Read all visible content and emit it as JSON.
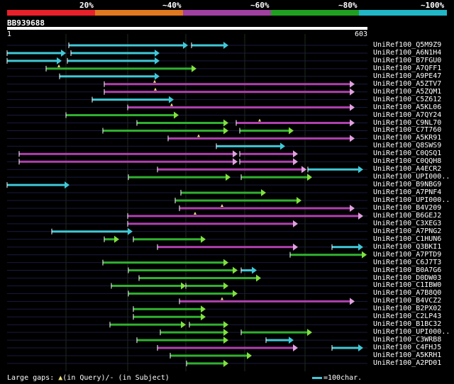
{
  "legend": {
    "colors": [
      "#e8202a",
      "#e07820",
      "#a040a0",
      "#20a020",
      "#20b8c8"
    ],
    "labels": [
      "20%",
      "~40%",
      "~60%",
      "~80%",
      "~100%"
    ]
  },
  "query": {
    "name": "BB939688",
    "start": "1",
    "end": "603"
  },
  "colors": {
    "cyan": "#40c8d8",
    "green": "#30b030",
    "magenta": "#b040b0",
    "arrowGreen": "#80e040",
    "arrowMagenta": "#e0a0e0",
    "guide": "#1a1a40"
  },
  "hits": [
    {
      "label": "UniRef100_Q5M9Z9",
      "segs": [
        [
          97,
          265,
          "c"
        ],
        [
          270,
          322,
          "c"
        ]
      ]
    },
    {
      "label": "UniRef100_A6N1H4",
      "segs": [
        [
          10,
          93,
          "c"
        ],
        [
          100,
          225,
          "c"
        ]
      ]
    },
    {
      "label": "UniRef100_B7FGU0",
      "segs": [
        [
          10,
          87,
          "c"
        ],
        [
          95,
          225,
          "c"
        ]
      ]
    },
    {
      "label": "UniRef100_A7QFF1",
      "segs": [
        [
          65,
          277,
          "g"
        ]
      ],
      "gaps": [
        83
      ]
    },
    {
      "label": "UniRef100_A9PE47",
      "segs": [
        [
          84,
          225,
          "c"
        ]
      ]
    },
    {
      "label": "UniRef100_A5ZTV7",
      "segs": [
        [
          147,
          500,
          "m"
        ]
      ],
      "gaps": [
        218
      ]
    },
    {
      "label": "UniRef100_A5ZQM1",
      "segs": [
        [
          147,
          500,
          "m"
        ]
      ],
      "gaps": [
        219
      ]
    },
    {
      "label": "UniRef100_C5Z612",
      "segs": [
        [
          130,
          245,
          "c"
        ]
      ]
    },
    {
      "label": "UniRef100_A5KL06",
      "segs": [
        [
          180,
          500,
          "m"
        ]
      ],
      "gaps": [
        242
      ]
    },
    {
      "label": "UniRef100_A7QY24",
      "segs": [
        [
          93,
          252,
          "g"
        ]
      ]
    },
    {
      "label": "UniRef100_C9NL70",
      "segs": [
        [
          193,
          322,
          "g"
        ],
        [
          333,
          500,
          "m"
        ]
      ],
      "gaps": [
        366
      ]
    },
    {
      "label": "UniRef100_C7T760",
      "segs": [
        [
          145,
          322,
          "g"
        ],
        [
          338,
          414,
          "g"
        ]
      ]
    },
    {
      "label": "UniRef100_A5KR91",
      "segs": [
        [
          237,
          500,
          "m"
        ]
      ],
      "gaps": [
        280
      ]
    },
    {
      "label": "UniRef100_Q8SWS9",
      "segs": [
        [
          305,
          402,
          "c"
        ]
      ]
    },
    {
      "label": "UniRef100_C0QSQ1",
      "segs": [
        [
          27,
          335,
          "m"
        ],
        [
          338,
          420,
          "m"
        ]
      ]
    },
    {
      "label": "UniRef100_C0QQH8",
      "segs": [
        [
          27,
          335,
          "m"
        ],
        [
          338,
          420,
          "m"
        ]
      ]
    },
    {
      "label": "UniRef100_A4ECR2",
      "segs": [
        [
          222,
          432,
          "m"
        ],
        [
          434,
          512,
          "c"
        ]
      ]
    },
    {
      "label": "UniRef100_UPI000..",
      "segs": [
        [
          181,
          325,
          "g"
        ],
        [
          340,
          440,
          "g"
        ]
      ]
    },
    {
      "label": "UniRef100_B9NBG9",
      "segs": [
        [
          10,
          98,
          "c"
        ]
      ]
    },
    {
      "label": "UniRef100_A7PNF4",
      "segs": [
        [
          255,
          375,
          "g"
        ]
      ]
    },
    {
      "label": "UniRef100_UPI000..",
      "segs": [
        [
          247,
          425,
          "g"
        ]
      ]
    },
    {
      "label": "UniRef100_B4V209",
      "segs": [
        [
          253,
          500,
          "m"
        ]
      ],
      "gaps": [
        313
      ]
    },
    {
      "label": "UniRef100_B6GEJ2",
      "segs": [
        [
          180,
          512,
          "m"
        ]
      ],
      "gaps": [
        275
      ]
    },
    {
      "label": "UniRef100_C3XEG3",
      "segs": [
        [
          180,
          420,
          "m"
        ]
      ]
    },
    {
      "label": "UniRef100_A7PNG2",
      "segs": [
        [
          73,
          187,
          "c"
        ]
      ]
    },
    {
      "label": "UniRef100_C1HUN6",
      "segs": [
        [
          147,
          168,
          "g"
        ],
        [
          188,
          290,
          "g"
        ]
      ]
    },
    {
      "label": "UniRef100_Q3BKI1",
      "segs": [
        [
          222,
          420,
          "m"
        ],
        [
          468,
          512,
          "c"
        ]
      ]
    },
    {
      "label": "UniRef100_A7PTD9",
      "segs": [
        [
          409,
          517,
          "g"
        ]
      ]
    },
    {
      "label": "UniRef100_C6J7T3",
      "segs": [
        [
          145,
          322,
          "g"
        ]
      ]
    },
    {
      "label": "UniRef100_B0A7G6",
      "segs": [
        [
          181,
          335,
          "g"
        ],
        [
          340,
          362,
          "c"
        ]
      ]
    },
    {
      "label": "UniRef100_D0DW03",
      "segs": [
        [
          196,
          368,
          "g"
        ]
      ]
    },
    {
      "label": "UniRef100_C1IBW0",
      "segs": [
        [
          157,
          262,
          "g"
        ],
        [
          262,
          322,
          "g"
        ]
      ]
    },
    {
      "label": "UniRef100_A7B8Q0",
      "segs": [
        [
          181,
          335,
          "g"
        ]
      ]
    },
    {
      "label": "UniRef100_B4VCZ2",
      "segs": [
        [
          253,
          500,
          "m"
        ]
      ],
      "gaps": [
        313
      ]
    },
    {
      "label": "UniRef100_B2PX02",
      "segs": [
        [
          188,
          290,
          "g"
        ]
      ]
    },
    {
      "label": "UniRef100_C2LP43",
      "segs": [
        [
          188,
          290,
          "g"
        ]
      ]
    },
    {
      "label": "UniRef100_B1BC32",
      "segs": [
        [
          155,
          262,
          "g"
        ],
        [
          267,
          322,
          "g"
        ]
      ]
    },
    {
      "label": "UniRef100_UPI000..",
      "segs": [
        [
          226,
          322,
          "g"
        ],
        [
          340,
          440,
          "g"
        ]
      ]
    },
    {
      "label": "UniRef100_C3WRB8",
      "segs": [
        [
          193,
          322,
          "g"
        ],
        [
          375,
          414,
          "c"
        ]
      ]
    },
    {
      "label": "UniRef100_C4FHJ5",
      "segs": [
        [
          222,
          420,
          "m"
        ],
        [
          468,
          512,
          "c"
        ]
      ]
    },
    {
      "label": "UniRef100_A5KRH1",
      "segs": [
        [
          240,
          355,
          "g"
        ]
      ]
    },
    {
      "label": "UniRef100_A2PD01",
      "segs": [
        [
          263,
          322,
          "g"
        ]
      ]
    }
  ],
  "footer": {
    "gaps_label": "Large gaps: ",
    "gaps_query": "(in Query)/",
    "gaps_subject": "- (in Subject)",
    "scale_label": "=100char."
  }
}
